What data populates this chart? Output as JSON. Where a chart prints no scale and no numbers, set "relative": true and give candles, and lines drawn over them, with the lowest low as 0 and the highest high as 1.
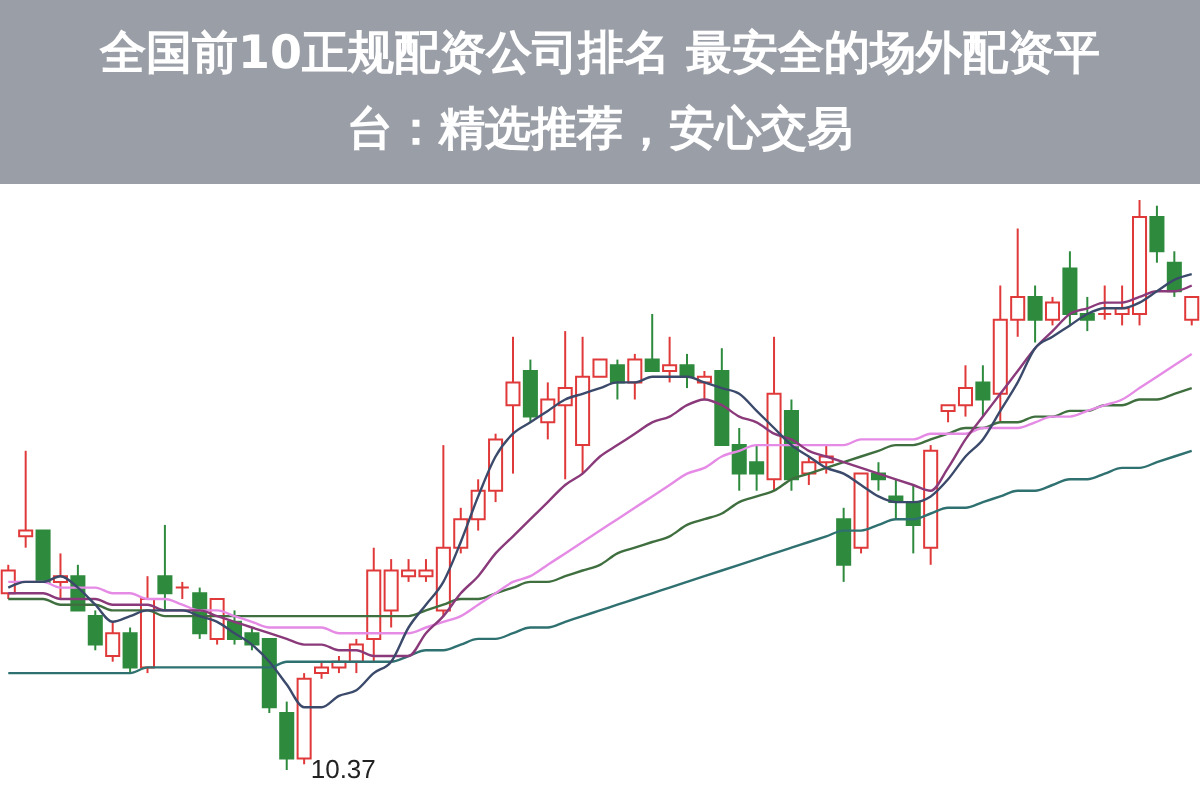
{
  "chart_data": {
    "type": "candlestick",
    "relative": true,
    "title": "全国前10正规配资公司排名 最安全的场外配资平台：精选推荐，安心交易",
    "annotations": [
      "10.37"
    ],
    "categories": [
      null,
      null,
      null,
      null,
      null,
      null,
      null,
      null,
      null,
      null,
      null,
      null,
      null,
      null,
      null,
      null,
      null,
      null,
      null,
      null,
      null,
      null,
      null,
      null,
      null,
      null,
      null,
      null,
      null,
      null,
      null,
      null,
      null,
      null,
      null,
      null,
      null,
      null,
      null,
      null,
      null,
      null,
      null,
      null,
      null,
      null,
      null,
      null,
      null,
      null,
      null,
      null,
      null,
      null,
      null,
      null,
      null,
      null,
      null,
      null,
      null,
      null,
      null,
      null,
      null,
      null,
      null,
      null,
      null
    ],
    "ohlc": [
      [
        0.31,
        0.36,
        0.3,
        0.35
      ],
      [
        0.41,
        0.56,
        0.39,
        0.42
      ],
      [
        0.42,
        0.42,
        0.33,
        0.33
      ],
      [
        0.33,
        0.38,
        0.3,
        0.34
      ],
      [
        0.34,
        0.36,
        0.28,
        0.28
      ],
      [
        0.27,
        0.28,
        0.21,
        0.22
      ],
      [
        0.2,
        0.26,
        0.19,
        0.24
      ],
      [
        0.24,
        0.25,
        0.17,
        0.18
      ],
      [
        0.18,
        0.34,
        0.17,
        0.3
      ],
      [
        0.34,
        0.43,
        0.28,
        0.31
      ],
      [
        0.32,
        0.33,
        0.3,
        0.32
      ],
      [
        0.31,
        0.32,
        0.23,
        0.24
      ],
      [
        0.23,
        0.3,
        0.22,
        0.3
      ],
      [
        0.26,
        0.28,
        0.22,
        0.23
      ],
      [
        0.24,
        0.25,
        0.21,
        0.22
      ],
      [
        0.23,
        0.23,
        0.1,
        0.11
      ],
      [
        0.1,
        0.12,
        0.0,
        0.02
      ],
      [
        0.02,
        0.17,
        0.01,
        0.16
      ],
      [
        0.17,
        0.19,
        0.16,
        0.18
      ],
      [
        0.18,
        0.2,
        0.17,
        0.19
      ],
      [
        0.19,
        0.23,
        0.17,
        0.22
      ],
      [
        0.23,
        0.39,
        0.19,
        0.35
      ],
      [
        0.28,
        0.37,
        0.25,
        0.35
      ],
      [
        0.34,
        0.37,
        0.33,
        0.35
      ],
      [
        0.34,
        0.37,
        0.33,
        0.35
      ],
      [
        0.28,
        0.57,
        0.27,
        0.39
      ],
      [
        0.39,
        0.46,
        0.38,
        0.44
      ],
      [
        0.44,
        0.51,
        0.42,
        0.49
      ],
      [
        0.49,
        0.59,
        0.47,
        0.58
      ],
      [
        0.64,
        0.76,
        0.52,
        0.68
      ],
      [
        0.7,
        0.72,
        0.61,
        0.62
      ],
      [
        0.61,
        0.68,
        0.58,
        0.65
      ],
      [
        0.64,
        0.77,
        0.51,
        0.67
      ],
      [
        0.57,
        0.76,
        0.52,
        0.69
      ],
      [
        0.69,
        0.72,
        0.69,
        0.72
      ],
      [
        0.71,
        0.72,
        0.65,
        0.68
      ],
      [
        0.68,
        0.73,
        0.65,
        0.72
      ],
      [
        0.72,
        0.8,
        0.7,
        0.7
      ],
      [
        0.7,
        0.76,
        0.68,
        0.71
      ],
      [
        0.71,
        0.73,
        0.67,
        0.69
      ],
      [
        0.68,
        0.7,
        0.65,
        0.69
      ],
      [
        0.7,
        0.74,
        0.57,
        0.57
      ],
      [
        0.57,
        0.6,
        0.49,
        0.52
      ],
      [
        0.54,
        0.57,
        0.49,
        0.52
      ],
      [
        0.51,
        0.76,
        0.49,
        0.66
      ],
      [
        0.63,
        0.65,
        0.49,
        0.51
      ],
      [
        0.52,
        0.55,
        0.5,
        0.54
      ],
      [
        0.54,
        0.57,
        0.52,
        0.55
      ],
      [
        0.44,
        0.46,
        0.33,
        0.36
      ],
      [
        0.39,
        0.52,
        0.38,
        0.52
      ],
      [
        0.52,
        0.54,
        0.49,
        0.51
      ],
      [
        0.48,
        0.51,
        0.44,
        0.47
      ],
      [
        0.47,
        0.5,
        0.38,
        0.43
      ],
      [
        0.39,
        0.57,
        0.36,
        0.56
      ],
      [
        0.63,
        0.64,
        0.61,
        0.64
      ],
      [
        0.64,
        0.71,
        0.62,
        0.67
      ],
      [
        0.68,
        0.71,
        0.62,
        0.65
      ],
      [
        0.66,
        0.85,
        0.61,
        0.79
      ],
      [
        0.79,
        0.95,
        0.76,
        0.83
      ],
      [
        0.83,
        0.85,
        0.75,
        0.79
      ],
      [
        0.79,
        0.83,
        0.78,
        0.82
      ],
      [
        0.88,
        0.91,
        0.78,
        0.8
      ],
      [
        0.8,
        0.83,
        0.77,
        0.79
      ],
      [
        0.8,
        0.85,
        0.79,
        0.8
      ],
      [
        0.8,
        0.85,
        0.78,
        0.81
      ],
      [
        0.8,
        1.0,
        0.78,
        0.97
      ],
      [
        0.97,
        0.99,
        0.89,
        0.91
      ],
      [
        0.89,
        0.91,
        0.83,
        0.84
      ],
      [
        0.79,
        0.83,
        0.78,
        0.83
      ]
    ],
    "series": [
      {
        "type": "line",
        "color": "#2f7070",
        "values": [
          0.17,
          0.17,
          0.17,
          0.17,
          0.17,
          0.17,
          0.17,
          0.17,
          0.18,
          0.18,
          0.18,
          0.18,
          0.18,
          0.18,
          0.18,
          0.18,
          0.19,
          0.19,
          0.19,
          0.19,
          0.19,
          0.19,
          0.19,
          0.2,
          0.21,
          0.21,
          0.22,
          0.23,
          0.23,
          0.24,
          0.25,
          0.25,
          0.26,
          0.27,
          0.28,
          0.29,
          0.3,
          0.31,
          0.32,
          0.33,
          0.34,
          0.35,
          0.36,
          0.37,
          0.38,
          0.39,
          0.4,
          0.41,
          0.42,
          0.42,
          0.43,
          0.44,
          0.44,
          0.45,
          0.46,
          0.46,
          0.47,
          0.48,
          0.49,
          0.49,
          0.5,
          0.51,
          0.51,
          0.52,
          0.53,
          0.53,
          0.54,
          0.55,
          0.56
        ]
      },
      {
        "type": "line",
        "color": "#3f6e3f",
        "values": [
          0.3,
          0.3,
          0.3,
          0.29,
          0.29,
          0.29,
          0.28,
          0.28,
          0.28,
          0.27,
          0.27,
          0.27,
          0.27,
          0.27,
          0.27,
          0.27,
          0.27,
          0.27,
          0.27,
          0.27,
          0.27,
          0.27,
          0.27,
          0.27,
          0.28,
          0.29,
          0.3,
          0.3,
          0.31,
          0.32,
          0.33,
          0.33,
          0.34,
          0.35,
          0.36,
          0.38,
          0.39,
          0.4,
          0.41,
          0.43,
          0.44,
          0.45,
          0.47,
          0.48,
          0.49,
          0.51,
          0.52,
          0.53,
          0.54,
          0.55,
          0.56,
          0.57,
          0.57,
          0.58,
          0.59,
          0.6,
          0.6,
          0.61,
          0.61,
          0.62,
          0.62,
          0.63,
          0.63,
          0.64,
          0.64,
          0.65,
          0.65,
          0.66,
          0.67
        ]
      },
      {
        "type": "line",
        "color": "#e58be5",
        "values": [
          0.33,
          0.33,
          0.33,
          0.32,
          0.32,
          0.32,
          0.31,
          0.31,
          0.3,
          0.3,
          0.29,
          0.28,
          0.28,
          0.27,
          0.26,
          0.25,
          0.25,
          0.25,
          0.25,
          0.24,
          0.24,
          0.24,
          0.24,
          0.24,
          0.25,
          0.26,
          0.27,
          0.29,
          0.31,
          0.33,
          0.34,
          0.36,
          0.38,
          0.4,
          0.42,
          0.44,
          0.46,
          0.48,
          0.5,
          0.52,
          0.53,
          0.55,
          0.56,
          0.57,
          0.57,
          0.57,
          0.57,
          0.57,
          0.57,
          0.58,
          0.58,
          0.58,
          0.58,
          0.59,
          0.59,
          0.59,
          0.6,
          0.6,
          0.6,
          0.61,
          0.62,
          0.62,
          0.63,
          0.64,
          0.65,
          0.67,
          0.69,
          0.71,
          0.73
        ]
      },
      {
        "type": "line",
        "color": "#8a3a7a",
        "values": [
          0.31,
          0.31,
          0.31,
          0.3,
          0.3,
          0.3,
          0.29,
          0.29,
          0.29,
          0.28,
          0.28,
          0.28,
          0.27,
          0.26,
          0.25,
          0.24,
          0.23,
          0.22,
          0.22,
          0.21,
          0.21,
          0.2,
          0.2,
          0.2,
          0.24,
          0.27,
          0.31,
          0.34,
          0.38,
          0.41,
          0.44,
          0.47,
          0.5,
          0.52,
          0.55,
          0.57,
          0.59,
          0.61,
          0.62,
          0.64,
          0.65,
          0.64,
          0.62,
          0.61,
          0.59,
          0.58,
          0.56,
          0.55,
          0.54,
          0.53,
          0.52,
          0.51,
          0.5,
          0.49,
          0.53,
          0.58,
          0.62,
          0.66,
          0.7,
          0.74,
          0.77,
          0.8,
          0.81,
          0.82,
          0.82,
          0.83,
          0.84,
          0.84,
          0.85
        ]
      },
      {
        "type": "line",
        "color": "#3b4a6b",
        "values": [
          0.32,
          0.33,
          0.33,
          0.34,
          0.32,
          0.29,
          0.26,
          0.27,
          0.28,
          0.28,
          0.28,
          0.27,
          0.26,
          0.24,
          0.22,
          0.19,
          0.15,
          0.11,
          0.11,
          0.13,
          0.14,
          0.17,
          0.19,
          0.25,
          0.29,
          0.33,
          0.4,
          0.48,
          0.55,
          0.59,
          0.61,
          0.63,
          0.65,
          0.66,
          0.67,
          0.68,
          0.68,
          0.69,
          0.69,
          0.69,
          0.68,
          0.67,
          0.66,
          0.63,
          0.6,
          0.57,
          0.55,
          0.53,
          0.52,
          0.5,
          0.48,
          0.47,
          0.47,
          0.48,
          0.51,
          0.55,
          0.58,
          0.63,
          0.68,
          0.74,
          0.76,
          0.78,
          0.8,
          0.81,
          0.81,
          0.82,
          0.84,
          0.86,
          0.87
        ]
      }
    ]
  }
}
